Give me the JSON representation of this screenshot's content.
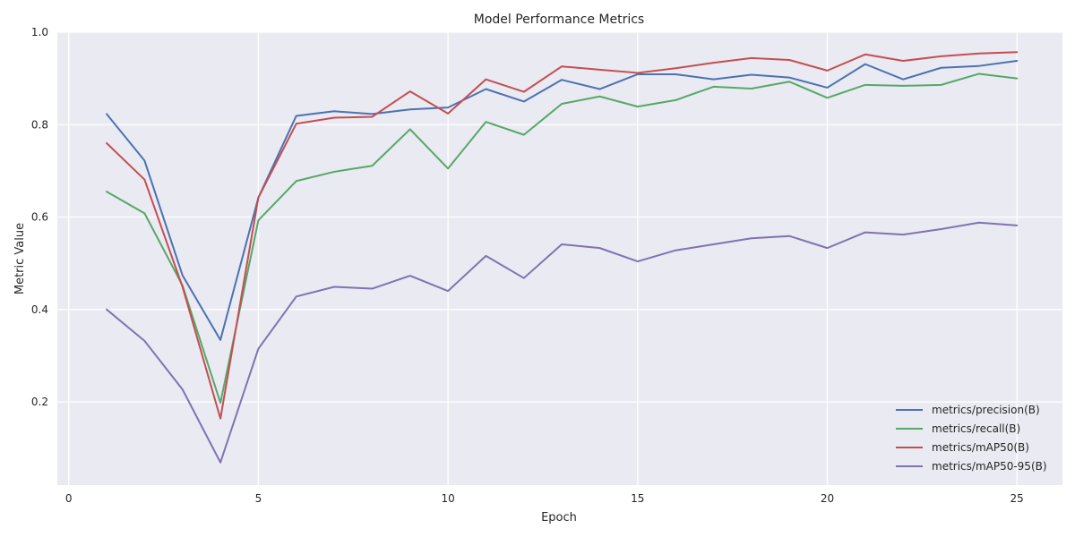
{
  "chart_data": {
    "type": "line",
    "title": "Model Performance Metrics",
    "xlabel": "Epoch",
    "ylabel": "Metric Value",
    "xlim": [
      -0.3,
      26.2
    ],
    "ylim": [
      0.02,
      1.0
    ],
    "x_ticks": [
      0,
      5,
      10,
      15,
      20,
      25
    ],
    "y_ticks": [
      0.2,
      0.4,
      0.6,
      0.8,
      1.0
    ],
    "x_tick_labels": [
      "0",
      "5",
      "10",
      "15",
      "20",
      "25"
    ],
    "y_tick_labels": [
      "0.2",
      "0.4",
      "0.6",
      "0.8",
      "1.0"
    ],
    "grid": true,
    "legend_position": "bottom-right",
    "background": "#eaeaf2",
    "x": [
      1,
      2,
      3,
      4,
      5,
      6,
      7,
      8,
      9,
      10,
      11,
      12,
      13,
      14,
      15,
      16,
      17,
      18,
      19,
      20,
      21,
      22,
      23,
      24,
      25
    ],
    "series": [
      {
        "name": "metrics/precision(B)",
        "color": "#4c72b0",
        "values": [
          0.823,
          0.722,
          0.474,
          0.334,
          0.642,
          0.819,
          0.829,
          0.823,
          0.833,
          0.837,
          0.877,
          0.85,
          0.897,
          0.877,
          0.909,
          0.909,
          0.898,
          0.908,
          0.902,
          0.88,
          0.931,
          0.898,
          0.923,
          0.927,
          0.938
        ]
      },
      {
        "name": "metrics/recall(B)",
        "color": "#55a868",
        "values": [
          0.655,
          0.608,
          0.452,
          0.198,
          0.593,
          0.678,
          0.698,
          0.711,
          0.79,
          0.705,
          0.806,
          0.778,
          0.845,
          0.861,
          0.839,
          0.853,
          0.882,
          0.878,
          0.893,
          0.858,
          0.886,
          0.884,
          0.886,
          0.91,
          0.9
        ]
      },
      {
        "name": "metrics/mAP50(B)",
        "color": "#c44e52",
        "values": [
          0.76,
          0.681,
          0.449,
          0.164,
          0.642,
          0.802,
          0.815,
          0.817,
          0.872,
          0.824,
          0.898,
          0.871,
          0.926,
          0.919,
          0.912,
          0.922,
          0.934,
          0.944,
          0.94,
          0.917,
          0.952,
          0.938,
          0.948,
          0.954,
          0.957
        ]
      },
      {
        "name": "metrics/mAP50-95(B)",
        "color": "#8172b2",
        "values": [
          0.4,
          0.332,
          0.227,
          0.069,
          0.315,
          0.428,
          0.449,
          0.445,
          0.473,
          0.44,
          0.516,
          0.468,
          0.541,
          0.533,
          0.504,
          0.528,
          0.541,
          0.554,
          0.559,
          0.533,
          0.567,
          0.562,
          0.574,
          0.588,
          0.582
        ]
      }
    ]
  }
}
